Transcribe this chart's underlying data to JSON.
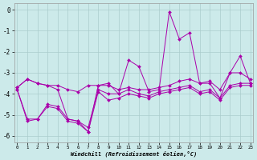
{
  "bg_color": "#cceaea",
  "line_color": "#aa00aa",
  "grid_color": "#aacccc",
  "xlabel": "Windchill (Refroidissement éolien,°C)",
  "xlim": [
    -0.3,
    23.3
  ],
  "ylim": [
    -6.3,
    0.3
  ],
  "yticks": [
    0,
    -1,
    -2,
    -3,
    -4,
    -5,
    -6
  ],
  "xticks": [
    0,
    1,
    2,
    3,
    4,
    5,
    6,
    7,
    8,
    9,
    10,
    11,
    12,
    13,
    14,
    15,
    16,
    17,
    18,
    19,
    20,
    21,
    22,
    23
  ],
  "lines": [
    {
      "x": [
        0,
        1,
        2,
        3,
        4,
        5,
        6,
        7,
        8,
        9,
        10,
        11,
        12,
        13,
        14,
        15,
        16,
        17,
        18,
        19,
        20,
        21,
        22,
        23
      ],
      "y": [
        -3.7,
        -3.3,
        -3.5,
        -3.6,
        -3.8,
        -5.2,
        -5.3,
        -5.8,
        -3.6,
        -3.5,
        -4.0,
        -2.4,
        -2.7,
        -3.9,
        -3.8,
        -0.1,
        -1.4,
        -1.1,
        -3.5,
        -3.5,
        -4.2,
        -3.0,
        -2.2,
        -3.5
      ]
    },
    {
      "x": [
        0,
        1,
        2,
        3,
        4,
        5,
        6,
        7,
        8,
        9,
        10,
        11,
        12,
        13,
        14,
        15,
        16,
        17,
        18,
        19,
        20,
        21,
        22,
        23
      ],
      "y": [
        -3.7,
        -3.3,
        -3.5,
        -3.6,
        -3.6,
        -3.8,
        -3.9,
        -3.6,
        -3.6,
        -3.6,
        -3.8,
        -3.7,
        -3.8,
        -3.8,
        -3.7,
        -3.6,
        -3.4,
        -3.3,
        -3.5,
        -3.4,
        -3.8,
        -3.0,
        -3.0,
        -3.3
      ]
    },
    {
      "x": [
        0,
        1,
        2,
        3,
        4,
        5,
        6,
        7,
        8,
        9,
        10,
        11,
        12,
        13,
        14,
        15,
        16,
        17,
        18,
        19,
        20,
        21,
        22,
        23
      ],
      "y": [
        -3.8,
        -5.3,
        -5.2,
        -4.6,
        -4.7,
        -5.3,
        -5.4,
        -5.8,
        -3.9,
        -4.3,
        -4.2,
        -4.0,
        -4.1,
        -4.2,
        -4.0,
        -3.9,
        -3.8,
        -3.7,
        -4.0,
        -3.9,
        -4.3,
        -3.7,
        -3.6,
        -3.6
      ]
    },
    {
      "x": [
        0,
        1,
        2,
        3,
        4,
        5,
        6,
        7,
        8,
        9,
        10,
        11,
        12,
        13,
        14,
        15,
        16,
        17,
        18,
        19,
        20,
        21,
        22,
        23
      ],
      "y": [
        -3.8,
        -5.2,
        -5.2,
        -4.5,
        -4.6,
        -5.2,
        -5.3,
        -5.6,
        -3.8,
        -4.0,
        -4.0,
        -3.8,
        -4.0,
        -4.1,
        -3.9,
        -3.8,
        -3.7,
        -3.6,
        -3.9,
        -3.8,
        -4.2,
        -3.6,
        -3.5,
        -3.5
      ]
    }
  ]
}
